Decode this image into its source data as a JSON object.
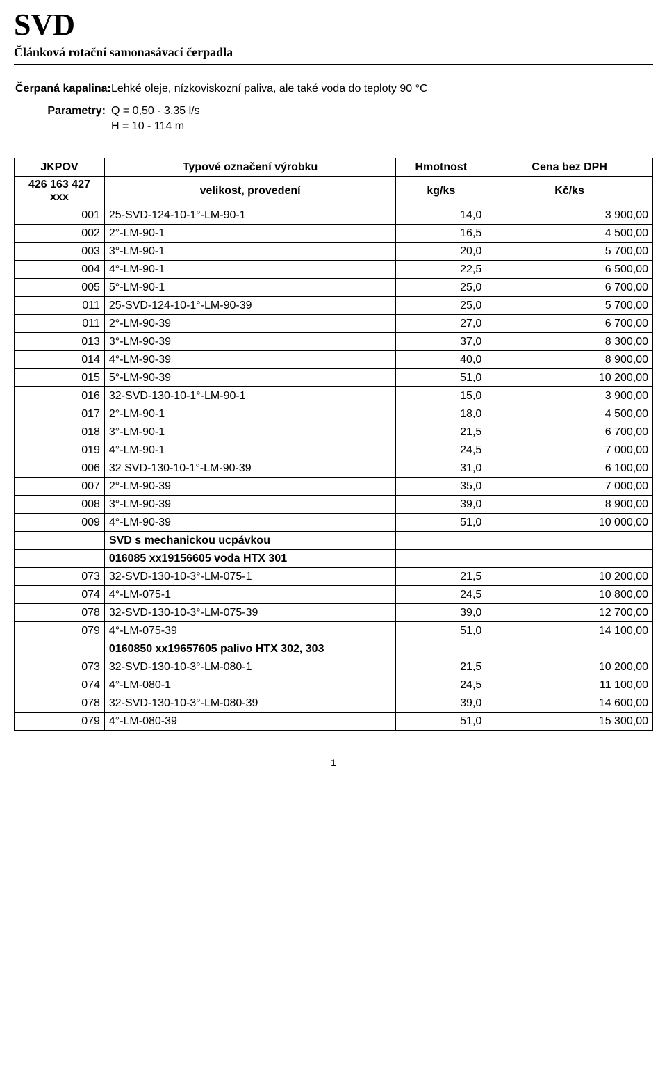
{
  "header": {
    "title": "SVD",
    "subtitle": "Článková rotační samonasávací čerpadla"
  },
  "meta": {
    "kapalina_label": "Čerpaná kapalina:",
    "kapalina_value": "Lehké oleje, nízkoviskozní paliva, ale také voda do teploty 90 °C",
    "parametry_label": "Parametry:",
    "parametry_line1": "Q = 0,50 - 3,35 l/s",
    "parametry_line2": "H = 10 - 114 m"
  },
  "table": {
    "head": {
      "r1c1": "JKPOV",
      "r1c2": "Typové označení výrobku",
      "r1c3": "Hmotnost",
      "r1c4": "Cena bez DPH",
      "r2c1": "426 163 427 xxx",
      "r2c2": "velikost, provedení",
      "r2c3": "kg/ks",
      "r2c4": "Kč/ks"
    },
    "rows": [
      {
        "code": "001",
        "type": "25-SVD-124-10-1°-LM-90-1",
        "ind": false,
        "w": "14,0",
        "p": "3 900,00"
      },
      {
        "code": "002",
        "type": "2°-LM-90-1",
        "ind": true,
        "w": "16,5",
        "p": "4 500,00"
      },
      {
        "code": "003",
        "type": "3°-LM-90-1",
        "ind": true,
        "w": "20,0",
        "p": "5 700,00"
      },
      {
        "code": "004",
        "type": "4°-LM-90-1",
        "ind": true,
        "w": "22,5",
        "p": "6 500,00"
      },
      {
        "code": "005",
        "type": "5°-LM-90-1",
        "ind": true,
        "w": "25,0",
        "p": "6 700,00"
      },
      {
        "code": "011",
        "type": "25-SVD-124-10-1°-LM-90-39",
        "ind": false,
        "w": "25,0",
        "p": "5 700,00"
      },
      {
        "code": "011",
        "type": "2°-LM-90-39",
        "ind": true,
        "w": "27,0",
        "p": "6 700,00"
      },
      {
        "code": "013",
        "type": "3°-LM-90-39",
        "ind": true,
        "w": "37,0",
        "p": "8 300,00"
      },
      {
        "code": "014",
        "type": "4°-LM-90-39",
        "ind": true,
        "w": "40,0",
        "p": "8 900,00"
      },
      {
        "code": "015",
        "type": "5°-LM-90-39",
        "ind": true,
        "w": "51,0",
        "p": "10 200,00"
      },
      {
        "code": "016",
        "type": "32-SVD-130-10-1°-LM-90-1",
        "ind": false,
        "w": "15,0",
        "p": "3 900,00"
      },
      {
        "code": "017",
        "type": "2°-LM-90-1",
        "ind": true,
        "w": "18,0",
        "p": "4 500,00"
      },
      {
        "code": "018",
        "type": "3°-LM-90-1",
        "ind": true,
        "w": "21,5",
        "p": "6 700,00"
      },
      {
        "code": "019",
        "type": "4°-LM-90-1",
        "ind": true,
        "w": "24,5",
        "p": "7 000,00"
      },
      {
        "code": "006",
        "type": "32 SVD-130-10-1°-LM-90-39",
        "ind": false,
        "w": "31,0",
        "p": "6 100,00"
      },
      {
        "code": "007",
        "type": "2°-LM-90-39",
        "ind": true,
        "w": "35,0",
        "p": "7 000,00"
      },
      {
        "code": "008",
        "type": "3°-LM-90-39",
        "ind": true,
        "w": "39,0",
        "p": "8 900,00"
      },
      {
        "code": "009",
        "type": "4°-LM-90-39",
        "ind": true,
        "w": "51,0",
        "p": "10 000,00"
      },
      {
        "section": "SVD s mechanickou ucpávkou"
      },
      {
        "section": "016085 xx19156605 voda HTX 301"
      },
      {
        "code": "073",
        "type": "32-SVD-130-10-3°-LM-075-1",
        "ind": false,
        "w": "21,5",
        "p": "10 200,00"
      },
      {
        "code": "074",
        "type": "4°-LM-075-1",
        "ind": true,
        "w": "24,5",
        "p": "10 800,00"
      },
      {
        "code": "078",
        "type": "32-SVD-130-10-3°-LM-075-39",
        "ind": false,
        "w": "39,0",
        "p": "12 700,00"
      },
      {
        "code": "079",
        "type": "4°-LM-075-39",
        "ind": true,
        "w": "51,0",
        "p": "14 100,00"
      },
      {
        "section": "0160850 xx19657605 palivo HTX 302, 303"
      },
      {
        "code": "073",
        "type": "32-SVD-130-10-3°-LM-080-1",
        "ind": false,
        "w": "21,5",
        "p": "10 200,00"
      },
      {
        "code": "074",
        "type": "4°-LM-080-1",
        "ind": true,
        "w": "24,5",
        "p": "11 100,00"
      },
      {
        "code": "078",
        "type": "32-SVD-130-10-3°-LM-080-39",
        "ind": false,
        "w": "39,0",
        "p": "14 600,00"
      },
      {
        "code": "079",
        "type": "4°-LM-080-39",
        "ind": true,
        "w": "51,0",
        "p": "15 300,00"
      }
    ]
  },
  "footer": {
    "page": "1"
  }
}
